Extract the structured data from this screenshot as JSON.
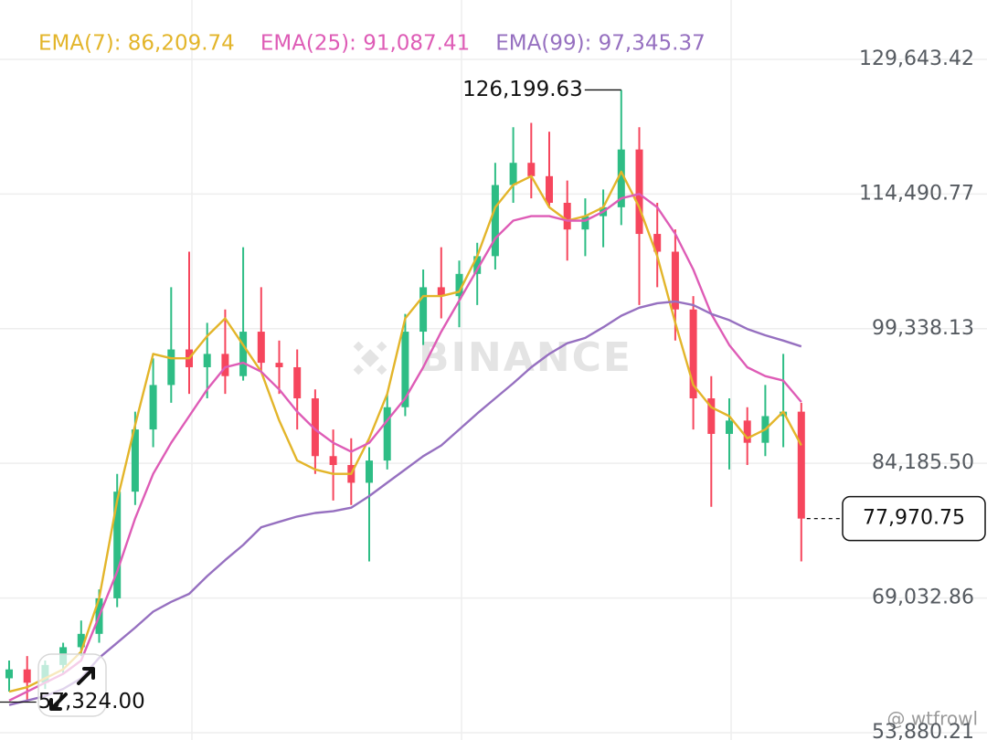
{
  "chart_data": {
    "type": "candlestick",
    "legend_position": "top-left",
    "grid": true,
    "up_color": "#2ebd85",
    "down_color": "#f6465d",
    "watermark": "BINANCE",
    "credit": "@ wtfrowl",
    "high_label": "126,199.63",
    "low_label": "57,324.00",
    "last_label": "77,970.75",
    "ylim": [
      53058,
      136320
    ],
    "yticks": [
      {
        "value": 129643.42,
        "label": "129,643.42"
      },
      {
        "value": 114490.77,
        "label": "114,490.77"
      },
      {
        "value": 99338.13,
        "label": "99,338.13"
      },
      {
        "value": 84185.5,
        "label": "84,185.50"
      },
      {
        "value": 69032.86,
        "label": "69,032.86"
      },
      {
        "value": 53880.21,
        "label": "53,880.21"
      }
    ],
    "open": [
      60000,
      61000,
      59500,
      61500,
      63500,
      65000,
      69000,
      81000,
      88000,
      93000,
      97000,
      95000,
      96500,
      94000,
      99000,
      95500,
      95000,
      91500,
      85000,
      84000,
      82000,
      84500,
      90500,
      99000,
      104000,
      103000,
      105500,
      107500,
      115500,
      118000,
      116500,
      113500,
      110500,
      112000,
      113000,
      119500,
      110000,
      108000,
      101500,
      91500,
      87500,
      89000,
      86500,
      89500,
      90000
    ],
    "high": [
      62000,
      62500,
      62000,
      64000,
      66500,
      70000,
      83000,
      90000,
      96000,
      104000,
      108000,
      100000,
      101500,
      108500,
      104000,
      98000,
      97000,
      92500,
      88000,
      87000,
      86000,
      92000,
      101000,
      106000,
      108500,
      107000,
      109000,
      118000,
      122000,
      122500,
      121500,
      116000,
      114000,
      115000,
      126199.63,
      122000,
      113500,
      110500,
      103000,
      94000,
      91500,
      90500,
      93000,
      96500,
      91000
    ],
    "low": [
      58500,
      57324,
      58800,
      60500,
      62500,
      64000,
      68000,
      79500,
      86000,
      91000,
      92000,
      91500,
      92000,
      93500,
      94500,
      92000,
      88000,
      83000,
      80000,
      79500,
      73150,
      83500,
      89500,
      97500,
      100500,
      99500,
      102000,
      106000,
      113500,
      114000,
      113000,
      107000,
      107500,
      108500,
      111000,
      102000,
      104000,
      98000,
      88000,
      79300,
      83500,
      84000,
      85000,
      86000,
      73150
    ],
    "close": [
      61000,
      59500,
      61500,
      63500,
      65000,
      69000,
      81000,
      88000,
      93000,
      97000,
      95000,
      96500,
      94000,
      99000,
      95500,
      95000,
      91500,
      85000,
      84000,
      82000,
      84500,
      90500,
      99000,
      104000,
      103000,
      105500,
      107500,
      115500,
      118000,
      116500,
      113500,
      110500,
      112000,
      113000,
      119500,
      110000,
      108000,
      101500,
      91500,
      87500,
      89000,
      86500,
      89500,
      90000,
      77970.75
    ],
    "series": [
      {
        "name": "EMA(7): 86,209.74",
        "color": "#e3b52a",
        "values": [
          58500,
          59000,
          60000,
          61000,
          63000,
          69000,
          80000,
          88500,
          96500,
          96000,
          96000,
          98500,
          100500,
          97500,
          94500,
          89000,
          84500,
          83500,
          83000,
          83000,
          87000,
          92000,
          100500,
          103000,
          103000,
          103500,
          107500,
          113000,
          115500,
          116500,
          113000,
          111500,
          112000,
          113000,
          117000,
          113000,
          107500,
          100000,
          93000,
          90500,
          89500,
          87000,
          88000,
          90000,
          86209.74
        ]
      },
      {
        "name": "EMA(25): 91,087.41",
        "color": "#de5cb6",
        "values": [
          57500,
          58500,
          59500,
          60500,
          62000,
          67000,
          72000,
          78000,
          83000,
          86500,
          89500,
          92500,
          95000,
          95500,
          94500,
          92500,
          90000,
          88000,
          86500,
          85500,
          86500,
          89000,
          91500,
          95000,
          99000,
          102500,
          106000,
          109500,
          111500,
          112000,
          112000,
          111500,
          111500,
          112500,
          114000,
          114500,
          113000,
          110000,
          106000,
          101000,
          97500,
          95000,
          94000,
          93500,
          91087.41
        ]
      },
      {
        "name": "EMA(99): 97,345.37",
        "color": "#9670c0",
        "values": [
          57000,
          57500,
          58000,
          58800,
          60000,
          62300,
          64000,
          65700,
          67500,
          68600,
          69500,
          71500,
          73300,
          75000,
          77000,
          77600,
          78200,
          78600,
          78800,
          79200,
          80500,
          82000,
          83500,
          85000,
          86200,
          88000,
          89800,
          91500,
          93200,
          95000,
          96500,
          97700,
          98300,
          99500,
          100800,
          101700,
          102200,
          102400,
          102000,
          101000,
          100300,
          99300,
          98600,
          98000,
          97345.37
        ]
      }
    ]
  }
}
